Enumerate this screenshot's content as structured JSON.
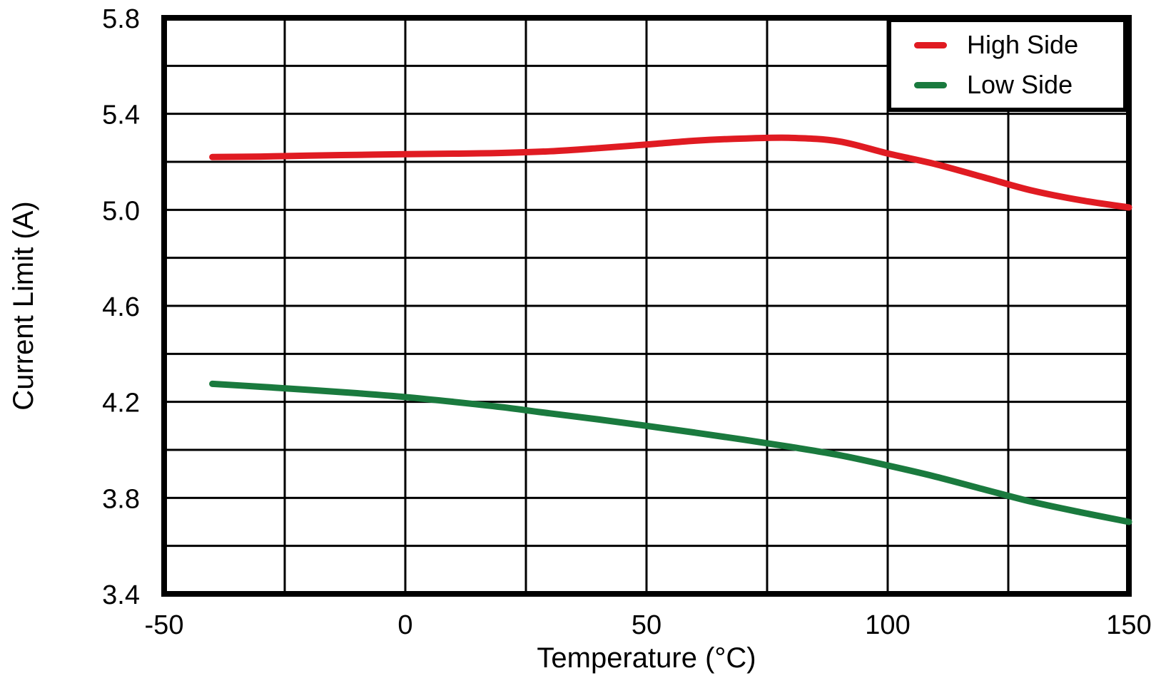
{
  "chart_data": {
    "type": "line",
    "title": "",
    "xlabel": "Temperature (°C)",
    "ylabel": "Current Limit (A)",
    "xlim": [
      -50,
      150
    ],
    "ylim": [
      3.4,
      5.8
    ],
    "x_major_ticks": [
      -50,
      0,
      50,
      100,
      150
    ],
    "x_grid_step": 25,
    "y_major_ticks": [
      3.4,
      3.8,
      4.2,
      4.6,
      5.0,
      5.4,
      5.8
    ],
    "y_grid_step": 0.2,
    "grid": true,
    "legend_position": "top-right",
    "frame_color": "#000000",
    "grid_color": "#000000",
    "series": [
      {
        "name": "High Side",
        "color": "#e01b22",
        "points": [
          [
            -40,
            5.22
          ],
          [
            -30,
            5.222
          ],
          [
            -20,
            5.226
          ],
          [
            -10,
            5.229
          ],
          [
            0,
            5.232
          ],
          [
            10,
            5.234
          ],
          [
            20,
            5.237
          ],
          [
            30,
            5.244
          ],
          [
            40,
            5.257
          ],
          [
            50,
            5.272
          ],
          [
            60,
            5.288
          ],
          [
            70,
            5.297
          ],
          [
            80,
            5.3
          ],
          [
            90,
            5.285
          ],
          [
            100,
            5.235
          ],
          [
            110,
            5.19
          ],
          [
            120,
            5.135
          ],
          [
            130,
            5.08
          ],
          [
            140,
            5.04
          ],
          [
            150,
            5.01
          ]
        ]
      },
      {
        "name": "Low Side",
        "color": "#1a7a3e",
        "points": [
          [
            -40,
            4.275
          ],
          [
            -30,
            4.263
          ],
          [
            -20,
            4.25
          ],
          [
            -10,
            4.236
          ],
          [
            0,
            4.22
          ],
          [
            10,
            4.2
          ],
          [
            20,
            4.178
          ],
          [
            30,
            4.152
          ],
          [
            40,
            4.127
          ],
          [
            50,
            4.1
          ],
          [
            60,
            4.072
          ],
          [
            70,
            4.043
          ],
          [
            80,
            4.012
          ],
          [
            90,
            3.978
          ],
          [
            100,
            3.935
          ],
          [
            110,
            3.888
          ],
          [
            120,
            3.835
          ],
          [
            130,
            3.783
          ],
          [
            140,
            3.74
          ],
          [
            150,
            3.7
          ]
        ]
      }
    ]
  }
}
